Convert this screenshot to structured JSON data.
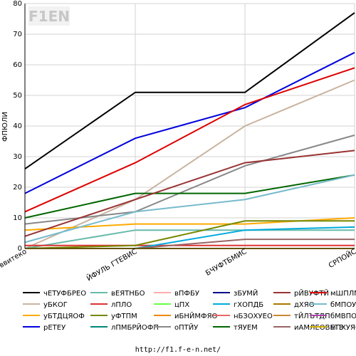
{
  "footer": {
    "url": "http://f1.f-e-n.net/"
  },
  "logo": {
    "text": "F1EN"
  },
  "chart_data": {
    "type": "line",
    "title": "",
    "xlabel": "",
    "ylabel": "ФПЮЛИ",
    "ylim": [
      0,
      80
    ],
    "yticks": [
      0,
      10,
      20,
      30,
      40,
      50,
      60,
      70,
      80
    ],
    "grid": true,
    "legend_placement": "bottom",
    "categories": [
      "ввитеко",
      "ЙФУЛЬ ГТЕВИС",
      "БЧУФТБМИС",
      "СРПОЙС"
    ],
    "series": [
      {
        "name": "чЕТУФБРЕО",
        "color": "#000000",
        "values": [
          26,
          51,
          51,
          77
        ]
      },
      {
        "name": "уБКОГ",
        "color": "#c8b4a0",
        "values": [
          0,
          16,
          40,
          55
        ]
      },
      {
        "name": "уБТДЦЯОФ",
        "color": "#ffaa00",
        "values": [
          6,
          8,
          8,
          10
        ]
      },
      {
        "name": "рЕТЕУ",
        "color": "#0000dd",
        "values": [
          18,
          36,
          46,
          64
        ]
      },
      {
        "name": "вЕЯТНБО",
        "color": "#66bbaa",
        "values": [
          0,
          6,
          6,
          6
        ]
      },
      {
        "name": "лПЛО",
        "color": "#dd3333",
        "values": [
          1,
          1,
          1,
          1
        ]
      },
      {
        "name": "уФТПМ",
        "color": "#778800",
        "values": [
          0,
          1,
          9,
          9
        ]
      },
      {
        "name": "лПМБРЙОФП",
        "color": "#008877",
        "values": [
          0,
          0,
          0,
          0
        ]
      },
      {
        "name": "вПФБУ",
        "color": "#ffaaaa",
        "values": [
          0,
          0,
          0,
          0
        ]
      },
      {
        "name": "цПХ",
        "color": "#66ff44",
        "values": [
          0,
          0,
          0,
          0
        ]
      },
      {
        "name": "иБНЙМФЯО",
        "color": "#ee8800",
        "values": [
          0,
          0,
          0,
          0
        ]
      },
      {
        "name": "оПТЙУ",
        "color": "#888888",
        "values": [
          8,
          12,
          27,
          37
        ]
      },
      {
        "name": "зБУМЙ",
        "color": "#000088",
        "values": [
          0,
          0,
          0,
          0
        ]
      },
      {
        "name": "гХОПДБ",
        "color": "#00aadd",
        "values": [
          0,
          0,
          6,
          7
        ]
      },
      {
        "name": "нБЗОХУЕО",
        "color": "#ee6666",
        "values": [
          0,
          0,
          0,
          0
        ]
      },
      {
        "name": "тЯУЕМ",
        "color": "#006600",
        "values": [
          10,
          18,
          18,
          24
        ]
      },
      {
        "name": "рЙВУФТЙ",
        "color": "#993333",
        "values": [
          4,
          16,
          28,
          32
        ]
      },
      {
        "name": "дХЯО",
        "color": "#aa7700",
        "values": [
          0,
          0,
          0,
          0
        ]
      },
      {
        "name": "тЙЛЪТДП",
        "color": "#cc8833",
        "values": [
          0,
          0,
          0,
          0
        ]
      },
      {
        "name": "иАМЛЕОВЕТЗ",
        "color": "#996666",
        "values": [
          0,
          0,
          3,
          3
        ]
      },
      {
        "name": "мШПЛМЕТ",
        "color": "#dd0000",
        "values": [
          12,
          28,
          47,
          59
        ]
      },
      {
        "name": "бМПОУП",
        "color": "#77bbcc",
        "values": [
          2,
          12,
          16,
          24
        ]
      },
      {
        "name": "бМВПО",
        "color": "#aa44aa",
        "values": [
          0,
          0,
          0,
          0
        ]
      },
      {
        "name": "мПХУЯО",
        "color": "#ccaa00",
        "values": [
          0,
          0,
          0,
          0
        ]
      }
    ]
  }
}
